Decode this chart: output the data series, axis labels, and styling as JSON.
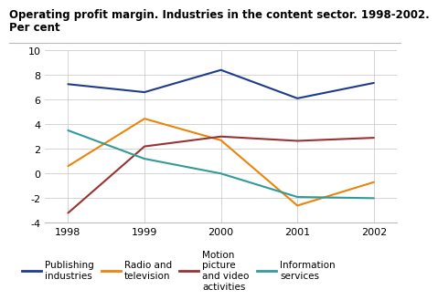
{
  "title_line1": "Operating profit margin. Industries in the content sector. 1998-2002.",
  "title_line2": "Per cent",
  "years": [
    1998,
    1999,
    2000,
    2001,
    2002
  ],
  "series": [
    {
      "label": "Publishing\nindustries",
      "color": "#1e3c8c",
      "values": [
        7.25,
        6.6,
        8.4,
        6.1,
        7.35
      ]
    },
    {
      "label": "Radio and\ntelevision",
      "color": "#e8850c",
      "values": [
        0.6,
        4.45,
        2.7,
        -2.6,
        -0.7
      ]
    },
    {
      "label": "Motion\npicture\nand video\nactivities",
      "color": "#993333",
      "values": [
        -3.2,
        2.2,
        3.0,
        2.65,
        2.9
      ]
    },
    {
      "label": "Information\nservices",
      "color": "#339999",
      "values": [
        3.5,
        1.2,
        0.0,
        -1.9,
        -2.0
      ]
    }
  ],
  "ylim": [
    -4,
    10
  ],
  "yticks": [
    -4,
    -2,
    0,
    2,
    4,
    6,
    8,
    10
  ],
  "xticks": [
    1998,
    1999,
    2000,
    2001,
    2002
  ],
  "background_color": "#ffffff",
  "grid_color": "#cccccc",
  "title_fontsize": 8.5,
  "tick_fontsize": 8.0,
  "legend_fontsize": 7.5
}
